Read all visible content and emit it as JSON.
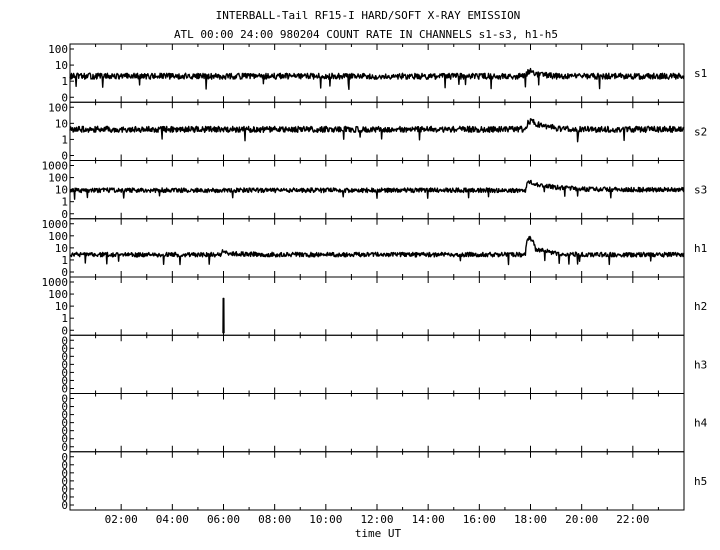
{
  "chart_data": {
    "type": "line",
    "title": "INTERBALL-Tail RF15-I HARD/SOFT X-RAY EMISSION",
    "subtitle": "ATL 00:00 24:00 980204  COUNT RATE IN CHANNELS s1-s3, h1-h5",
    "xlabel": "time UT",
    "xlim": [
      0,
      24
    ],
    "x_ticks": [
      {
        "value": 2,
        "label": "02:00"
      },
      {
        "value": 4,
        "label": "04:00"
      },
      {
        "value": 6,
        "label": "06:00"
      },
      {
        "value": 8,
        "label": "08:00"
      },
      {
        "value": 10,
        "label": "10:00"
      },
      {
        "value": 12,
        "label": "12:00"
      },
      {
        "value": 14,
        "label": "14:00"
      },
      {
        "value": 16,
        "label": "16:00"
      },
      {
        "value": 18,
        "label": "18:00"
      },
      {
        "value": 20,
        "label": "20:00"
      },
      {
        "value": 22,
        "label": "22:00"
      }
    ],
    "yscale": "log",
    "grid": false,
    "panels": [
      {
        "name": "s1",
        "y_ticks": [
          "100",
          "10",
          "1",
          "0"
        ],
        "points": [
          [
            0,
            4
          ],
          [
            2,
            4
          ],
          [
            4,
            4
          ],
          [
            6,
            4
          ],
          [
            8,
            4
          ],
          [
            10,
            4
          ],
          [
            12,
            4
          ],
          [
            14,
            4
          ],
          [
            16,
            4
          ],
          [
            17.8,
            4
          ],
          [
            17.95,
            8
          ],
          [
            18.3,
            5
          ],
          [
            19,
            4
          ],
          [
            20,
            4
          ],
          [
            22,
            4
          ],
          [
            24,
            4
          ]
        ]
      },
      {
        "name": "s2",
        "y_ticks": [
          "100",
          "10",
          "1",
          "0"
        ],
        "points": [
          [
            0,
            8
          ],
          [
            2,
            8
          ],
          [
            4,
            8
          ],
          [
            6,
            8
          ],
          [
            8,
            8
          ],
          [
            10,
            8
          ],
          [
            12,
            8
          ],
          [
            14,
            8
          ],
          [
            16,
            8
          ],
          [
            17.8,
            8
          ],
          [
            17.95,
            25
          ],
          [
            18.3,
            15
          ],
          [
            19,
            9
          ],
          [
            20,
            8
          ],
          [
            22,
            8
          ],
          [
            24,
            8
          ]
        ]
      },
      {
        "name": "s3",
        "y_ticks": [
          "1000",
          "100",
          "10",
          "1",
          "0"
        ],
        "points": [
          [
            0,
            18
          ],
          [
            2,
            18
          ],
          [
            4,
            18
          ],
          [
            6,
            18
          ],
          [
            8,
            18
          ],
          [
            10,
            18
          ],
          [
            12,
            18
          ],
          [
            14,
            18
          ],
          [
            16,
            18
          ],
          [
            17.8,
            18
          ],
          [
            17.95,
            80
          ],
          [
            18.3,
            45
          ],
          [
            19,
            30
          ],
          [
            20,
            22
          ],
          [
            22,
            20
          ],
          [
            24,
            20
          ]
        ]
      },
      {
        "name": "h1",
        "y_ticks": [
          "1000",
          "100",
          "10",
          "1",
          "0"
        ],
        "points": [
          [
            0,
            6
          ],
          [
            2,
            6
          ],
          [
            4,
            6
          ],
          [
            5.9,
            6
          ],
          [
            6,
            12
          ],
          [
            6.2,
            7
          ],
          [
            8,
            6
          ],
          [
            10,
            6
          ],
          [
            12,
            6
          ],
          [
            14,
            6
          ],
          [
            16,
            6
          ],
          [
            17.8,
            6
          ],
          [
            17.95,
            120
          ],
          [
            18.2,
            15
          ],
          [
            19,
            7
          ],
          [
            20,
            6
          ],
          [
            22,
            6
          ],
          [
            24,
            6
          ]
        ]
      },
      {
        "name": "h2",
        "y_ticks": [
          "1000",
          "100",
          "10",
          "1",
          "0"
        ],
        "points": [
          [
            5.98,
            0
          ],
          [
            5.99,
            80
          ],
          [
            6.01,
            80
          ],
          [
            6.02,
            0
          ]
        ]
      },
      {
        "name": "h3",
        "y_ticks": [
          "0",
          "0",
          "0",
          "0",
          "0",
          "0",
          "0"
        ],
        "points": []
      },
      {
        "name": "h4",
        "y_ticks": [
          "0",
          "0",
          "0",
          "0",
          "0",
          "0",
          "0"
        ],
        "points": []
      },
      {
        "name": "h5",
        "y_ticks": [
          "0",
          "0",
          "0",
          "0",
          "0",
          "0",
          "0"
        ],
        "points": []
      }
    ]
  }
}
